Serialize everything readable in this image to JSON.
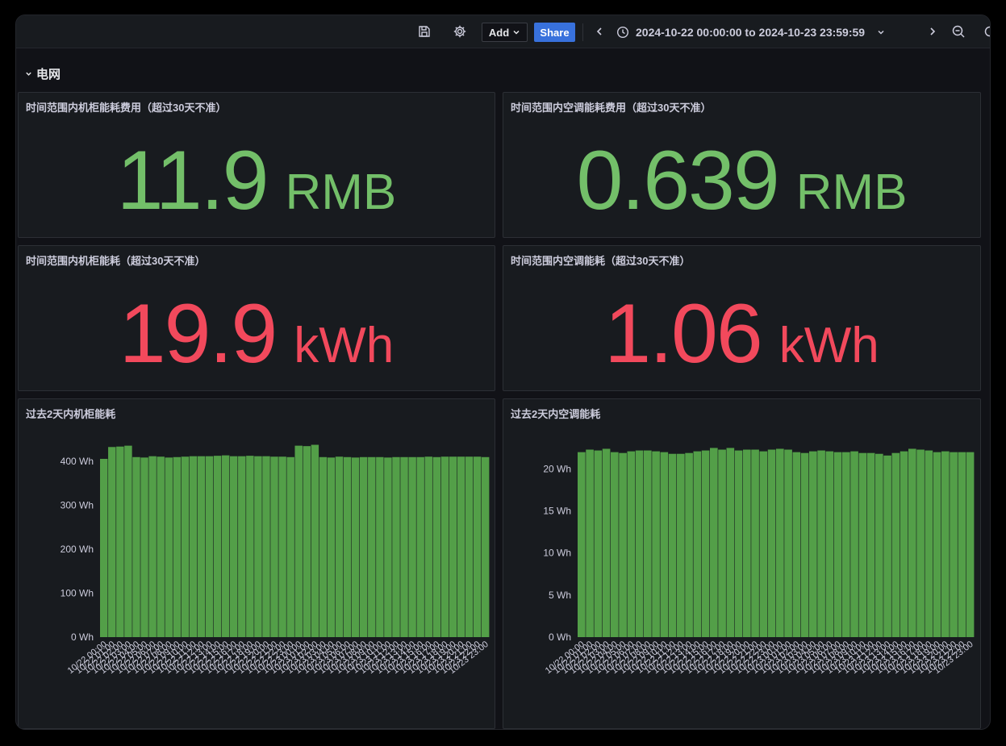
{
  "toolbar": {
    "add_label": "Add",
    "share_label": "Share",
    "time_range": "2024-10-22 00:00:00 to 2024-10-23 23:59:59",
    "icons": [
      "save-icon",
      "gear-icon",
      "chevron-left-icon",
      "clock-icon",
      "chevron-down-icon",
      "chevron-right-icon",
      "zoom-out-icon",
      "refresh-icon"
    ]
  },
  "row": {
    "title": "电网"
  },
  "panels": {
    "cabinet_cost": {
      "title": "时间范围内机柜能耗费用（超过30天不准）",
      "value": "11.9",
      "unit": "RMB",
      "color": "#73bf69"
    },
    "ac_cost": {
      "title": "时间范围内空调能耗费用（超过30天不准）",
      "value": "0.639",
      "unit": "RMB",
      "color": "#73bf69"
    },
    "cabinet_energy": {
      "title": "时间范围内机柜能耗（超过30天不准）",
      "value": "19.9",
      "unit": "kWh",
      "color": "#f2495c"
    },
    "ac_energy": {
      "title": "时间范围内空调能耗（超过30天不准）",
      "value": "1.06",
      "unit": "kWh",
      "color": "#f2495c"
    },
    "cabinet_chart": {
      "title": "过去2天内机柜能耗"
    },
    "ac_chart": {
      "title": "过去2天内空调能耗"
    }
  },
  "chart_data": [
    {
      "type": "bar",
      "title": "过去2天内机柜能耗",
      "color": "#56a64b",
      "y_ticks": [
        "0 Wh",
        "100 Wh",
        "200 Wh",
        "300 Wh",
        "400 Wh"
      ],
      "ylim": [
        0,
        450
      ],
      "categories": [
        "10/22 00:00",
        "10/22 01:00",
        "10/22 02:00",
        "10/22 03:00",
        "10/22 04:00",
        "10/22 05:00",
        "10/22 06:00",
        "10/22 07:00",
        "10/22 08:00",
        "10/22 09:00",
        "10/22 10:00",
        "10/22 11:00",
        "10/22 12:00",
        "10/22 13:00",
        "10/22 14:00",
        "10/22 15:00",
        "10/22 16:00",
        "10/22 17:00",
        "10/22 18:00",
        "10/22 19:00",
        "10/22 20:00",
        "10/22 21:00",
        "10/22 22:00",
        "10/22 23:00",
        "10/23 00:00",
        "10/23 01:00",
        "10/23 02:00",
        "10/23 03:00",
        "10/23 04:00",
        "10/23 05:00",
        "10/23 06:00",
        "10/23 07:00",
        "10/23 08:00",
        "10/23 09:00",
        "10/23 10:00",
        "10/23 11:00",
        "10/23 12:00",
        "10/23 13:00",
        "10/23 14:00",
        "10/23 15:00",
        "10/23 16:00",
        "10/23 17:00",
        "10/23 18:00",
        "10/23 19:00",
        "10/23 20:00",
        "10/23 21:00",
        "10/23 22:00",
        "10/23 23:00"
      ],
      "values": [
        406,
        433,
        434,
        436,
        410,
        409,
        412,
        411,
        409,
        410,
        411,
        412,
        412,
        412,
        413,
        414,
        412,
        412,
        413,
        412,
        412,
        411,
        411,
        410,
        436,
        435,
        438,
        410,
        409,
        411,
        410,
        409,
        410,
        410,
        410,
        409,
        410,
        410,
        410,
        410,
        411,
        410,
        411,
        411,
        411,
        411,
        411,
        410
      ]
    },
    {
      "type": "bar",
      "title": "过去2天内空调能耗",
      "color": "#56a64b",
      "y_ticks": [
        "0 Wh",
        "5 Wh",
        "10 Wh",
        "15 Wh",
        "20 Wh"
      ],
      "ylim": [
        0,
        23.5
      ],
      "categories": [
        "10/22 00:00",
        "10/22 01:00",
        "10/22 02:00",
        "10/22 03:00",
        "10/22 04:00",
        "10/22 05:00",
        "10/22 06:00",
        "10/22 07:00",
        "10/22 08:00",
        "10/22 09:00",
        "10/22 10:00",
        "10/22 11:00",
        "10/22 12:00",
        "10/22 13:00",
        "10/22 14:00",
        "10/22 15:00",
        "10/22 16:00",
        "10/22 17:00",
        "10/22 18:00",
        "10/22 19:00",
        "10/22 20:00",
        "10/22 21:00",
        "10/22 22:00",
        "10/22 23:00",
        "10/23 00:00",
        "10/23 01:00",
        "10/23 02:00",
        "10/23 03:00",
        "10/23 04:00",
        "10/23 05:00",
        "10/23 06:00",
        "10/23 07:00",
        "10/23 08:00",
        "10/23 09:00",
        "10/23 10:00",
        "10/23 11:00",
        "10/23 12:00",
        "10/23 13:00",
        "10/23 14:00",
        "10/23 15:00",
        "10/23 16:00",
        "10/23 17:00",
        "10/23 18:00",
        "10/23 19:00",
        "10/23 20:00",
        "10/23 21:00",
        "10/23 22:00",
        "10/23 23:00"
      ],
      "values": [
        22.0,
        22.3,
        22.2,
        22.4,
        22.0,
        21.9,
        22.1,
        22.2,
        22.2,
        22.1,
        22.0,
        21.8,
        21.8,
        21.9,
        22.1,
        22.2,
        22.5,
        22.3,
        22.5,
        22.2,
        22.3,
        22.3,
        22.1,
        22.3,
        22.4,
        22.3,
        22.0,
        21.9,
        22.1,
        22.2,
        22.1,
        22.0,
        22.0,
        22.1,
        21.9,
        21.9,
        21.8,
        21.6,
        21.9,
        22.1,
        22.4,
        22.3,
        22.2,
        22.0,
        22.1,
        22.0,
        22.0,
        22.0
      ]
    }
  ]
}
